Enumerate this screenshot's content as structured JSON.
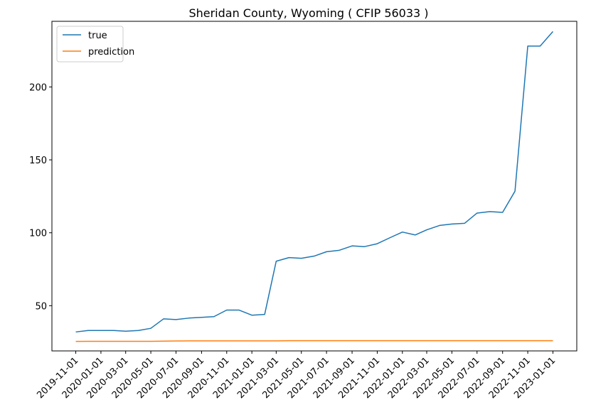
{
  "chart_data": {
    "type": "line",
    "title": "Sheridan County, Wyoming ( CFIP 56033 )",
    "xlabel": "",
    "ylabel": "",
    "x": [
      "2019-11-01",
      "2019-12-01",
      "2020-01-01",
      "2020-02-01",
      "2020-03-01",
      "2020-04-01",
      "2020-05-01",
      "2020-06-01",
      "2020-07-01",
      "2020-08-01",
      "2020-09-01",
      "2020-10-01",
      "2020-11-01",
      "2020-12-01",
      "2021-01-01",
      "2021-02-01",
      "2021-03-01",
      "2021-04-01",
      "2021-05-01",
      "2021-06-01",
      "2021-07-01",
      "2021-08-01",
      "2021-09-01",
      "2021-10-01",
      "2021-11-01",
      "2021-12-01",
      "2022-01-01",
      "2022-02-01",
      "2022-03-01",
      "2022-04-01",
      "2022-05-01",
      "2022-06-01",
      "2022-07-01",
      "2022-08-01",
      "2022-09-01",
      "2022-10-01",
      "2022-11-01",
      "2022-12-01",
      "2023-01-01"
    ],
    "x_ticks": [
      "2019-11-01",
      "2020-01-01",
      "2020-03-01",
      "2020-05-01",
      "2020-07-01",
      "2020-09-01",
      "2020-11-01",
      "2021-01-01",
      "2021-03-01",
      "2021-05-01",
      "2021-07-01",
      "2021-09-01",
      "2021-11-01",
      "2022-01-01",
      "2022-03-01",
      "2022-05-01",
      "2022-07-01",
      "2022-09-01",
      "2022-11-01",
      "2023-01-01"
    ],
    "y_ticks": [
      50,
      100,
      150,
      200
    ],
    "ylim": [
      19,
      245
    ],
    "grid": false,
    "legend_position": "top-left",
    "series": [
      {
        "name": "true",
        "color": "#1f77b4",
        "values": [
          32,
          33,
          33,
          33,
          32.5,
          33,
          34.5,
          41,
          40.5,
          41.5,
          42,
          42.5,
          47,
          47,
          43.5,
          44,
          80.5,
          83,
          82.5,
          84,
          87,
          88,
          91,
          90.5,
          92.5,
          96.5,
          100.5,
          98.5,
          102,
          105,
          106,
          106.5,
          113.5,
          114.5,
          114,
          128.5,
          228,
          228,
          238
        ]
      },
      {
        "name": "prediction",
        "color": "#ff7f0e",
        "values": [
          25.5,
          25.6,
          25.6,
          25.6,
          25.6,
          25.6,
          25.6,
          25.7,
          25.8,
          25.9,
          25.9,
          25.9,
          25.9,
          25.9,
          25.9,
          25.9,
          25.9,
          26.0,
          26.0,
          26.0,
          26.0,
          26.0,
          26.0,
          26.0,
          26.0,
          26.0,
          26.0,
          26.0,
          26.0,
          26.0,
          26.0,
          26.0,
          26.0,
          26.0,
          26.0,
          26.0,
          26.0,
          26.0,
          26.0
        ]
      }
    ]
  }
}
